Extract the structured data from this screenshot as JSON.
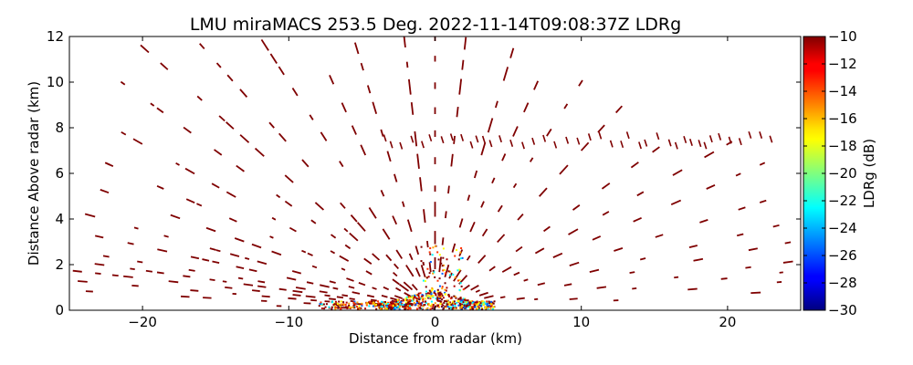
{
  "chart_data": {
    "type": "scatter",
    "title": "LMU miraMACS 253.5 Deg. 2022-11-14T09:08:37Z  LDRg",
    "xlabel": "Distance from radar (km)",
    "ylabel": "Distance Above radar  (km)",
    "xlim": [
      -25,
      25
    ],
    "ylim": [
      0,
      12
    ],
    "x_ticks": [
      -20,
      -10,
      0,
      10,
      20
    ],
    "x_tick_labels": [
      "−20",
      "−10",
      "0",
      "10",
      "20"
    ],
    "y_ticks": [
      0,
      2,
      4,
      6,
      8,
      10,
      12
    ],
    "y_tick_labels": [
      "0",
      "2",
      "4",
      "6",
      "8",
      "10",
      "12"
    ],
    "grid": false,
    "colorbar": {
      "label": "LDRg (dB)",
      "range": [
        -30,
        -10
      ],
      "colormap": "jet",
      "ticks": [
        -10,
        -12,
        -14,
        -16,
        -18,
        -20,
        -22,
        -24,
        -26,
        -28,
        -30
      ],
      "tick_labels": [
        "−10",
        "−12",
        "−14",
        "−16",
        "−18",
        "−20",
        "−22",
        "−24",
        "−26",
        "−28",
        "−30"
      ]
    },
    "scan": {
      "elevation_angles_deg": [
        1,
        2,
        3,
        4,
        5,
        6,
        8,
        10,
        13,
        16,
        20,
        25,
        30,
        36,
        45,
        55,
        65,
        80,
        90,
        100,
        115,
        125,
        135,
        145,
        155,
        160,
        164,
        168,
        171,
        173,
        175,
        176,
        177,
        178
      ],
      "echo_ranges_km": {
        "1": [
          5,
          5.8,
          6.5,
          10.5
        ],
        "2": [
          6.2,
          8.5,
          11.5,
          15.3,
          16.8,
          23.4
        ],
        "3": [
          2.4,
          3.6,
          5,
          7.2,
          8.1,
          9.5,
          11.3,
          13.6,
          16.2,
          20.3,
          23.8
        ],
        "4": [
          3.5,
          5.5,
          6.8,
          8.2,
          9.2,
          12,
          13.9,
          17.6,
          20.7,
          21.7,
          22.9,
          24.2
        ],
        "5": [
          1.7,
          4.1,
          5.5,
          6.3,
          7.2,
          9.1,
          10.2,
          11.6,
          12.5,
          14.3,
          15.1,
          16.8,
          18.6,
          19.4,
          20.6,
          22.7
        ],
        "6": [
          2,
          4,
          6,
          7.4,
          8.9,
          11.7,
          13.2,
          16.5,
          20.1,
          22.4
        ],
        "8": [
          1.6,
          2.6,
          4.2,
          5.2,
          6.7,
          7.3,
          8.4,
          9.6,
          12.3,
          13.2,
          14.9,
          15.6,
          16.3,
          18.5,
          20.8,
          22.9
        ],
        "10": [
          1.5,
          2.6,
          3.3,
          5.6,
          6.9,
          9.3,
          11.7,
          12.9,
          13.6,
          14.9,
          15.2,
          18.5,
          20.6,
          23.6
        ],
        "13": [
          1.7,
          2.3,
          4.1,
          4.9,
          5.7,
          8.3,
          10.8,
          12.2,
          13.4,
          15.4,
          17.9,
          22.9
        ],
        "16": [
          3.3,
          6.4,
          8.7,
          9.2,
          11.5,
          14.1,
          16.6,
          17.1,
          19.3,
          22.9,
          23.1
        ],
        "20": [
          1.6,
          2.5,
          4.6,
          6.3,
          7.3,
          10.1,
          11.6,
          14.5,
          15.7,
          17.5,
          18.6,
          21.3,
          22.5
        ],
        "25": [
          2,
          2.7,
          4.8,
          6.4,
          7.5,
          9,
          10.8,
          11.7,
          14.4,
          16.1,
          18.4,
          20.5,
          21.2,
          23.4
        ],
        "30": [
          1.8,
          3,
          4.4,
          6.1,
          6.9,
          8.8,
          11.2,
          13.5,
          14.7,
          15.9,
          16.6,
          18.4,
          21.1,
          22.6
        ],
        "36": [
          1.5,
          3.1,
          3.7,
          5.9,
          6.6,
          7.6,
          10.7,
          12.6,
          13.6,
          15.9,
          17.1,
          18.1,
          19.5,
          22.8
        ],
        "45": [
          2.1,
          3.2,
          4.4,
          5.7,
          8.9,
          10.5,
          11.8,
          13.3,
          14.6,
          15.3,
          16.1
        ],
        "55": [
          1.8,
          2.7,
          4.6,
          6.1,
          8.3,
          9.4,
          10.6,
          12.1
        ],
        "65": [
          1.6,
          2.7,
          3.8,
          5,
          6.2,
          7.2,
          8.4,
          9.5,
          10.5,
          11.6,
          12.4
        ],
        "80": [
          1.7,
          2.8,
          3.9,
          5.3,
          6.3,
          7.3,
          8.7,
          9.6,
          10.8,
          11.7
        ],
        "90": [
          1.8,
          2.9,
          4.1,
          5.2,
          6.4,
          7.6,
          8.6,
          9.7,
          10.9,
          11.8
        ],
        "100": [
          1.7,
          2.9,
          4.1,
          5.2,
          6.4,
          7.4,
          8.6,
          9.6,
          10.7,
          11.6
        ],
        "115": [
          1.6,
          2.8,
          4,
          5.3,
          6.4,
          7.5,
          8.6,
          9.8,
          11.1,
          12.2
        ],
        "125": [
          1.7,
          2.9,
          4.2,
          5.5,
          6.8,
          8,
          9.3,
          10.6,
          11.8
        ],
        "135": [
          1.8,
          3.1,
          4.6,
          6.1,
          7.6,
          9.2,
          10.8,
          12.5,
          13.9
        ],
        "145": [
          2,
          3.6,
          5.2,
          6.9,
          8.7,
          10.4,
          12.2,
          13.6,
          15.1
        ],
        "155": [
          2.2,
          4.1,
          6.1,
          8.2,
          10.4,
          12.6,
          14.8,
          16.4
        ],
        "160": [
          2.6,
          4.9,
          7.3,
          9.7,
          12.2,
          14.7,
          17.3,
          19.6,
          21.2
        ],
        "164": [
          2.9,
          5.6,
          8.4,
          11.2,
          14.1,
          16.8,
          19.3,
          21.4,
          23.1
        ],
        "168": [
          3.1,
          6.2,
          9.4,
          12.5,
          15.4,
          18.5,
          21.2,
          22.7
        ],
        "171": [
          3.4,
          7.1,
          10.7,
          14.2,
          17.6,
          20.9,
          23.4
        ],
        "173": [
          4.5,
          8.9,
          13.4,
          17.8,
          21.6,
          24.1
        ],
        "175": [
          5.6,
          11.1,
          16.4,
          21.3,
          23.9
        ],
        "176": [
          6.8,
          13.5,
          19.6,
          23.6
        ],
        "177": [
          9.2,
          17.3,
          23.4
        ],
        "178": [
          12.2,
          21.6
        ]
      },
      "melting_layer_height_km": 7.6,
      "melting_layer_x_range_km": [
        -3.5,
        23
      ]
    }
  }
}
